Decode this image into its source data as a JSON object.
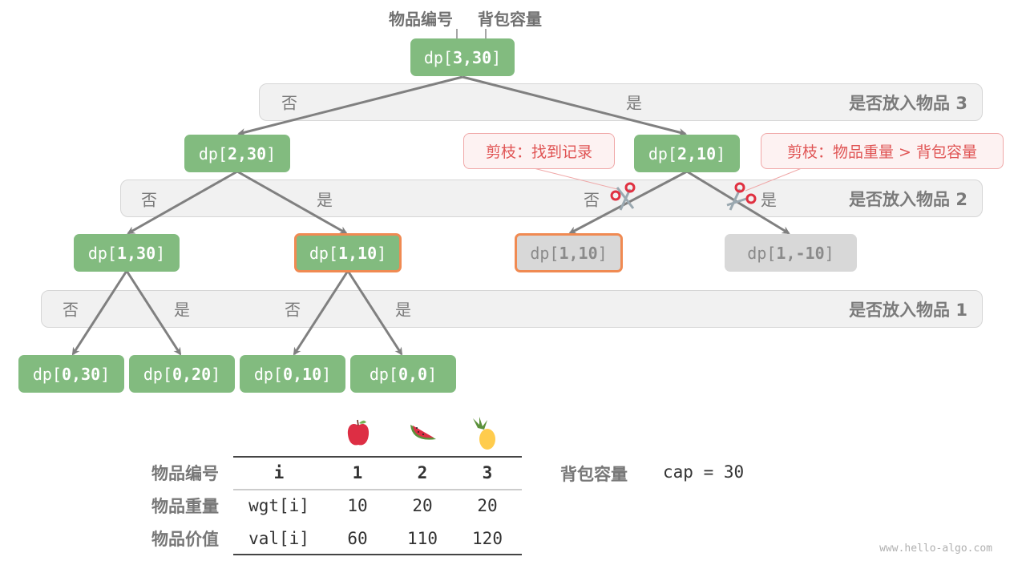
{
  "header": {
    "item_label": "物品编号",
    "capacity_label": "背包容量"
  },
  "bands": [
    {
      "label": "是否放入物品 3"
    },
    {
      "label": "是否放入物品 2"
    },
    {
      "label": "是否放入物品 1"
    }
  ],
  "choices": {
    "no": "否",
    "yes": "是"
  },
  "nodes": {
    "n330": {
      "pre": "dp[",
      "args": "3,30",
      "post": "]"
    },
    "n230": {
      "pre": "dp[",
      "args": "2,30",
      "post": "]"
    },
    "n210": {
      "pre": "dp[",
      "args": "2,10",
      "post": "]"
    },
    "n130": {
      "pre": "dp[",
      "args": "1,30",
      "post": "]"
    },
    "n110": {
      "pre": "dp[",
      "args": "1,10",
      "post": "]"
    },
    "n110b": {
      "pre": "dp[",
      "args": "1,10",
      "post": "]"
    },
    "n1m10": {
      "pre": "dp[",
      "args": "1,-10",
      "post": "]"
    },
    "n030": {
      "pre": "dp[",
      "args": "0,30",
      "post": "]"
    },
    "n020": {
      "pre": "dp[",
      "args": "0,20",
      "post": "]"
    },
    "n010": {
      "pre": "dp[",
      "args": "0,10",
      "post": "]"
    },
    "n00": {
      "pre": "dp[",
      "args": "0,0",
      "post": "]"
    }
  },
  "callouts": {
    "memo": "剪枝：找到记录",
    "overweight": "剪枝：物品重量 > 背包容量"
  },
  "icons": {
    "scissors": "scissors-icon",
    "fruits": [
      "apple-icon",
      "watermelon-icon",
      "pineapple-icon"
    ]
  },
  "colors": {
    "node": "#82bb7f",
    "highlight": "#f08a52",
    "pruned": "#d8d8d8",
    "callout": "#e05555"
  },
  "table": {
    "row_labels": [
      "物品编号",
      "物品重量",
      "物品价值"
    ],
    "rows": [
      [
        "i",
        "1",
        "2",
        "3"
      ],
      [
        "wgt[i]",
        "10",
        "20",
        "20"
      ],
      [
        "val[i]",
        "60",
        "110",
        "120"
      ]
    ],
    "capacity_label": "背包容量",
    "capacity_value": "cap = 30"
  },
  "watermark": "www.hello-algo.com"
}
